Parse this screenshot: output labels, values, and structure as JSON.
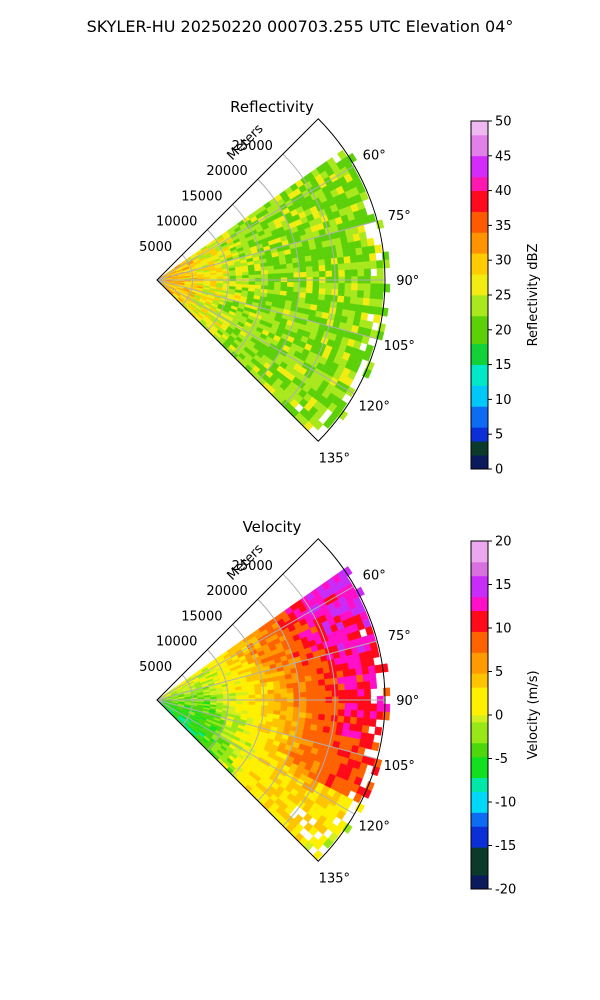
{
  "figure": {
    "suptitle": "SKYLER-HU  20250220  000703.255 UTC Elevation 04°"
  },
  "chart_data": [
    {
      "type": "heatmap",
      "subtype": "polar-sector (PPI)",
      "title": "Reflectivity",
      "range_axis_label": "Meters",
      "range_ticks": [
        5000,
        10000,
        15000,
        20000,
        25000
      ],
      "range_max": 32000,
      "azimuth_ticks": [
        60,
        75,
        90,
        105,
        120,
        135
      ],
      "azimuth_tick_labels": [
        "60°",
        "75°",
        "90°",
        "105°",
        "120°",
        "135°"
      ],
      "azimuth_range": [
        45,
        135
      ],
      "data_azimuth_range": [
        55,
        135
      ],
      "grid": true,
      "colorbar": {
        "label": "Reflectivity dBZ",
        "range": [
          0,
          50
        ],
        "ticks": [
          0,
          5,
          10,
          15,
          20,
          25,
          30,
          35,
          40,
          45,
          50
        ],
        "colormap": "NWS reflectivity",
        "stops": [
          {
            "v": 0,
            "c": "#0a1a5c"
          },
          {
            "v": 2,
            "c": "#0c3a2a"
          },
          {
            "v": 4,
            "c": "#0a2fd6"
          },
          {
            "v": 6,
            "c": "#0d6cf2"
          },
          {
            "v": 9,
            "c": "#00c8f8"
          },
          {
            "v": 12,
            "c": "#00e8c8"
          },
          {
            "v": 15,
            "c": "#12d23a"
          },
          {
            "v": 18,
            "c": "#5cd10a"
          },
          {
            "v": 22,
            "c": "#a8e81c"
          },
          {
            "v": 25,
            "c": "#f2ec12"
          },
          {
            "v": 28,
            "c": "#ffcc00"
          },
          {
            "v": 31,
            "c": "#ff9400"
          },
          {
            "v": 34,
            "c": "#ff5a00"
          },
          {
            "v": 37,
            "c": "#ff0a1e"
          },
          {
            "v": 40,
            "c": "#ff18b0"
          },
          {
            "v": 42,
            "c": "#d42cf8"
          },
          {
            "v": 45,
            "c": "#e080e8"
          },
          {
            "v": 48,
            "c": "#f0b8f2"
          },
          {
            "v": 50,
            "c": "#f8e8f8"
          }
        ]
      },
      "field_description": {
        "near_range_value": 31,
        "far_range_value": 22,
        "mean_value": 22,
        "noise": 4
      }
    },
    {
      "type": "heatmap",
      "subtype": "polar-sector (PPI)",
      "title": "Velocity",
      "range_axis_label": "Meters",
      "range_ticks": [
        5000,
        10000,
        15000,
        20000,
        25000
      ],
      "range_max": 32000,
      "azimuth_ticks": [
        60,
        75,
        90,
        105,
        120,
        135
      ],
      "azimuth_tick_labels": [
        "60°",
        "75°",
        "90°",
        "105°",
        "120°",
        "135°"
      ],
      "azimuth_range": [
        45,
        135
      ],
      "data_azimuth_range": [
        55,
        135
      ],
      "grid": true,
      "colorbar": {
        "label": "Velocity (m/s)",
        "range": [
          -20,
          20
        ],
        "ticks": [
          -20,
          -15,
          -10,
          -5,
          0,
          5,
          10,
          15,
          20
        ],
        "colormap": "NWS velocity",
        "stops": [
          {
            "v": -20,
            "c": "#0a1a5c"
          },
          {
            "v": -18,
            "c": "#0c3a2a"
          },
          {
            "v": -15,
            "c": "#0a2fd6"
          },
          {
            "v": -13,
            "c": "#0d6cf2"
          },
          {
            "v": -11,
            "c": "#00d8f8"
          },
          {
            "v": -9,
            "c": "#00e8a8"
          },
          {
            "v": -7,
            "c": "#10e020"
          },
          {
            "v": -5,
            "c": "#4cd80c"
          },
          {
            "v": -3,
            "c": "#98e818"
          },
          {
            "v": -1,
            "c": "#d2f020"
          },
          {
            "v": 0,
            "c": "#fff000"
          },
          {
            "v": 3,
            "c": "#ffc400"
          },
          {
            "v": 5,
            "c": "#ff9a00"
          },
          {
            "v": 7,
            "c": "#ff6200"
          },
          {
            "v": 10,
            "c": "#ff0a1a"
          },
          {
            "v": 12,
            "c": "#ff10c8"
          },
          {
            "v": 14,
            "c": "#c82cf8"
          },
          {
            "v": 16,
            "c": "#d870e0"
          },
          {
            "v": 18,
            "c": "#eca8ee"
          },
          {
            "v": 20,
            "c": "#f8e8f8"
          }
        ]
      },
      "field_description": {
        "near_range_value": -3,
        "far_range_value": 10,
        "mean_value": 3,
        "noise": 2
      }
    }
  ]
}
